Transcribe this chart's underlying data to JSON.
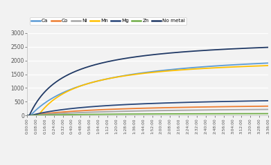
{
  "title": "",
  "xlabel": "",
  "ylabel": "",
  "ylim": [
    0,
    3000
  ],
  "xlim_minutes": 216,
  "legend_labels": [
    "Ca",
    "Co",
    "Ni",
    "Mn",
    "Mg",
    "Zn",
    "No metal"
  ],
  "series_colors": [
    "#5B9BD5",
    "#ED7D31",
    "#A5A5A5",
    "#FFC000",
    "#264478",
    "#70AD47",
    "#1F3864"
  ],
  "background_color": "#F2F2F2",
  "grid_color": "#FFFFFF",
  "tick_interval_minutes": 8,
  "curves": {
    "Ca": {
      "Vmax": 2400,
      "Km": 55,
      "lag": 3
    },
    "Co": {
      "Vmax": 460,
      "Km": 75,
      "lag": 3
    },
    "Ni": {
      "Vmax": 310,
      "Km": 85,
      "lag": 3
    },
    "Mn": {
      "Vmax": 2150,
      "Km": 38,
      "lag": 10
    },
    "Mg": {
      "Vmax": 700,
      "Km": 65,
      "lag": 3
    },
    "Zn": {
      "Vmax": 85,
      "Km": 55,
      "lag": 3
    },
    "No metal": {
      "Vmax": 2850,
      "Km": 32,
      "lag": 2
    }
  },
  "yticks": [
    0,
    500,
    1000,
    1500,
    2000,
    2500,
    3000
  ]
}
